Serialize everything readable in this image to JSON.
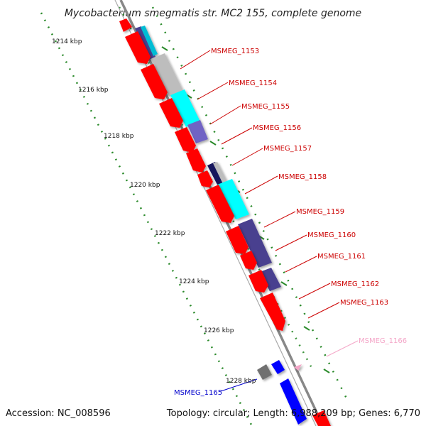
{
  "title": "Mycobacterium smegmatis str. MC2 155, complete genome",
  "footer": {
    "accession": "Accession: NC_008596",
    "summary": "Topology: circular; Length: 6,988,209 bp; Genes: 6,770"
  },
  "scale_labels": [
    "1214 kbp",
    "1216 kbp",
    "1218 kbp",
    "1220 kbp",
    "1222 kbp",
    "1224 kbp",
    "1226 kbp",
    "1228 kbp"
  ],
  "gene_labels": [
    {
      "text": "MSMEG_1153",
      "color": "#cc0000"
    },
    {
      "text": "MSMEG_1154",
      "color": "#cc0000"
    },
    {
      "text": "MSMEG_1155",
      "color": "#cc0000"
    },
    {
      "text": "MSMEG_1156",
      "color": "#cc0000"
    },
    {
      "text": "MSMEG_1157",
      "color": "#cc0000"
    },
    {
      "text": "MSMEG_1158",
      "color": "#cc0000"
    },
    {
      "text": "MSMEG_1159",
      "color": "#cc0000"
    },
    {
      "text": "MSMEG_1160",
      "color": "#cc0000"
    },
    {
      "text": "MSMEG_1161",
      "color": "#cc0000"
    },
    {
      "text": "MSMEG_1162",
      "color": "#cc0000"
    },
    {
      "text": "MSMEG_1163",
      "color": "#cc0000"
    },
    {
      "text": "MSMEG_1166",
      "color": "#f4a6c8"
    },
    {
      "text": "MSMEG_1165",
      "color": "#0000cc"
    }
  ],
  "colors": {
    "cds": "#ff0000",
    "backbone": "#888888",
    "tick_green": "#2a8a2a",
    "cog_cyan": "#00ffff",
    "cog_purple": "#4a3f8f",
    "cog_slate": "#6f63c4",
    "cog_gray": "#bdbdbd",
    "cog_navy": "#12125c",
    "cog_blue": "#0000ff",
    "cog_pink": "#f4a6c8"
  }
}
